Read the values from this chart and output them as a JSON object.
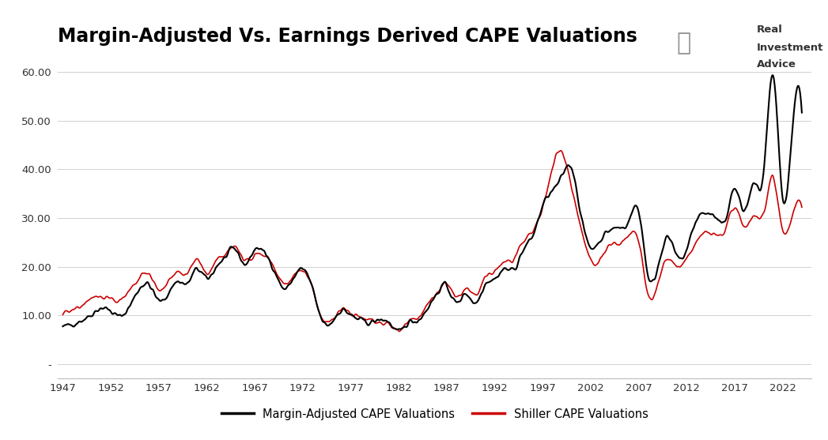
{
  "title": "Margin-Adjusted Vs. Earnings Derived CAPE Valuations",
  "title_fontsize": 17,
  "title_fontweight": "bold",
  "background_color": "#ffffff",
  "grid_color": "#d0d0d0",
  "yticks": [
    0,
    10.0,
    20.0,
    30.0,
    40.0,
    50.0,
    60.0
  ],
  "ytick_labels": [
    "-",
    "10.00",
    "20.00",
    "30.00",
    "40.00",
    "50.00",
    "60.00"
  ],
  "xticks": [
    1947,
    1952,
    1957,
    1962,
    1967,
    1972,
    1977,
    1982,
    1987,
    1992,
    1997,
    2002,
    2007,
    2012,
    2017,
    2022
  ],
  "ylim": [
    -3,
    64
  ],
  "xlim": [
    1946.5,
    2025.0
  ],
  "line1_color": "#000000",
  "line2_color": "#cc0000",
  "line1_label": "Margin-Adjusted CAPE Valuations",
  "line2_label": "Shiller CAPE Valuations",
  "watermark_line1": "Real",
  "watermark_line2": "Investment",
  "watermark_line3": "Advice"
}
